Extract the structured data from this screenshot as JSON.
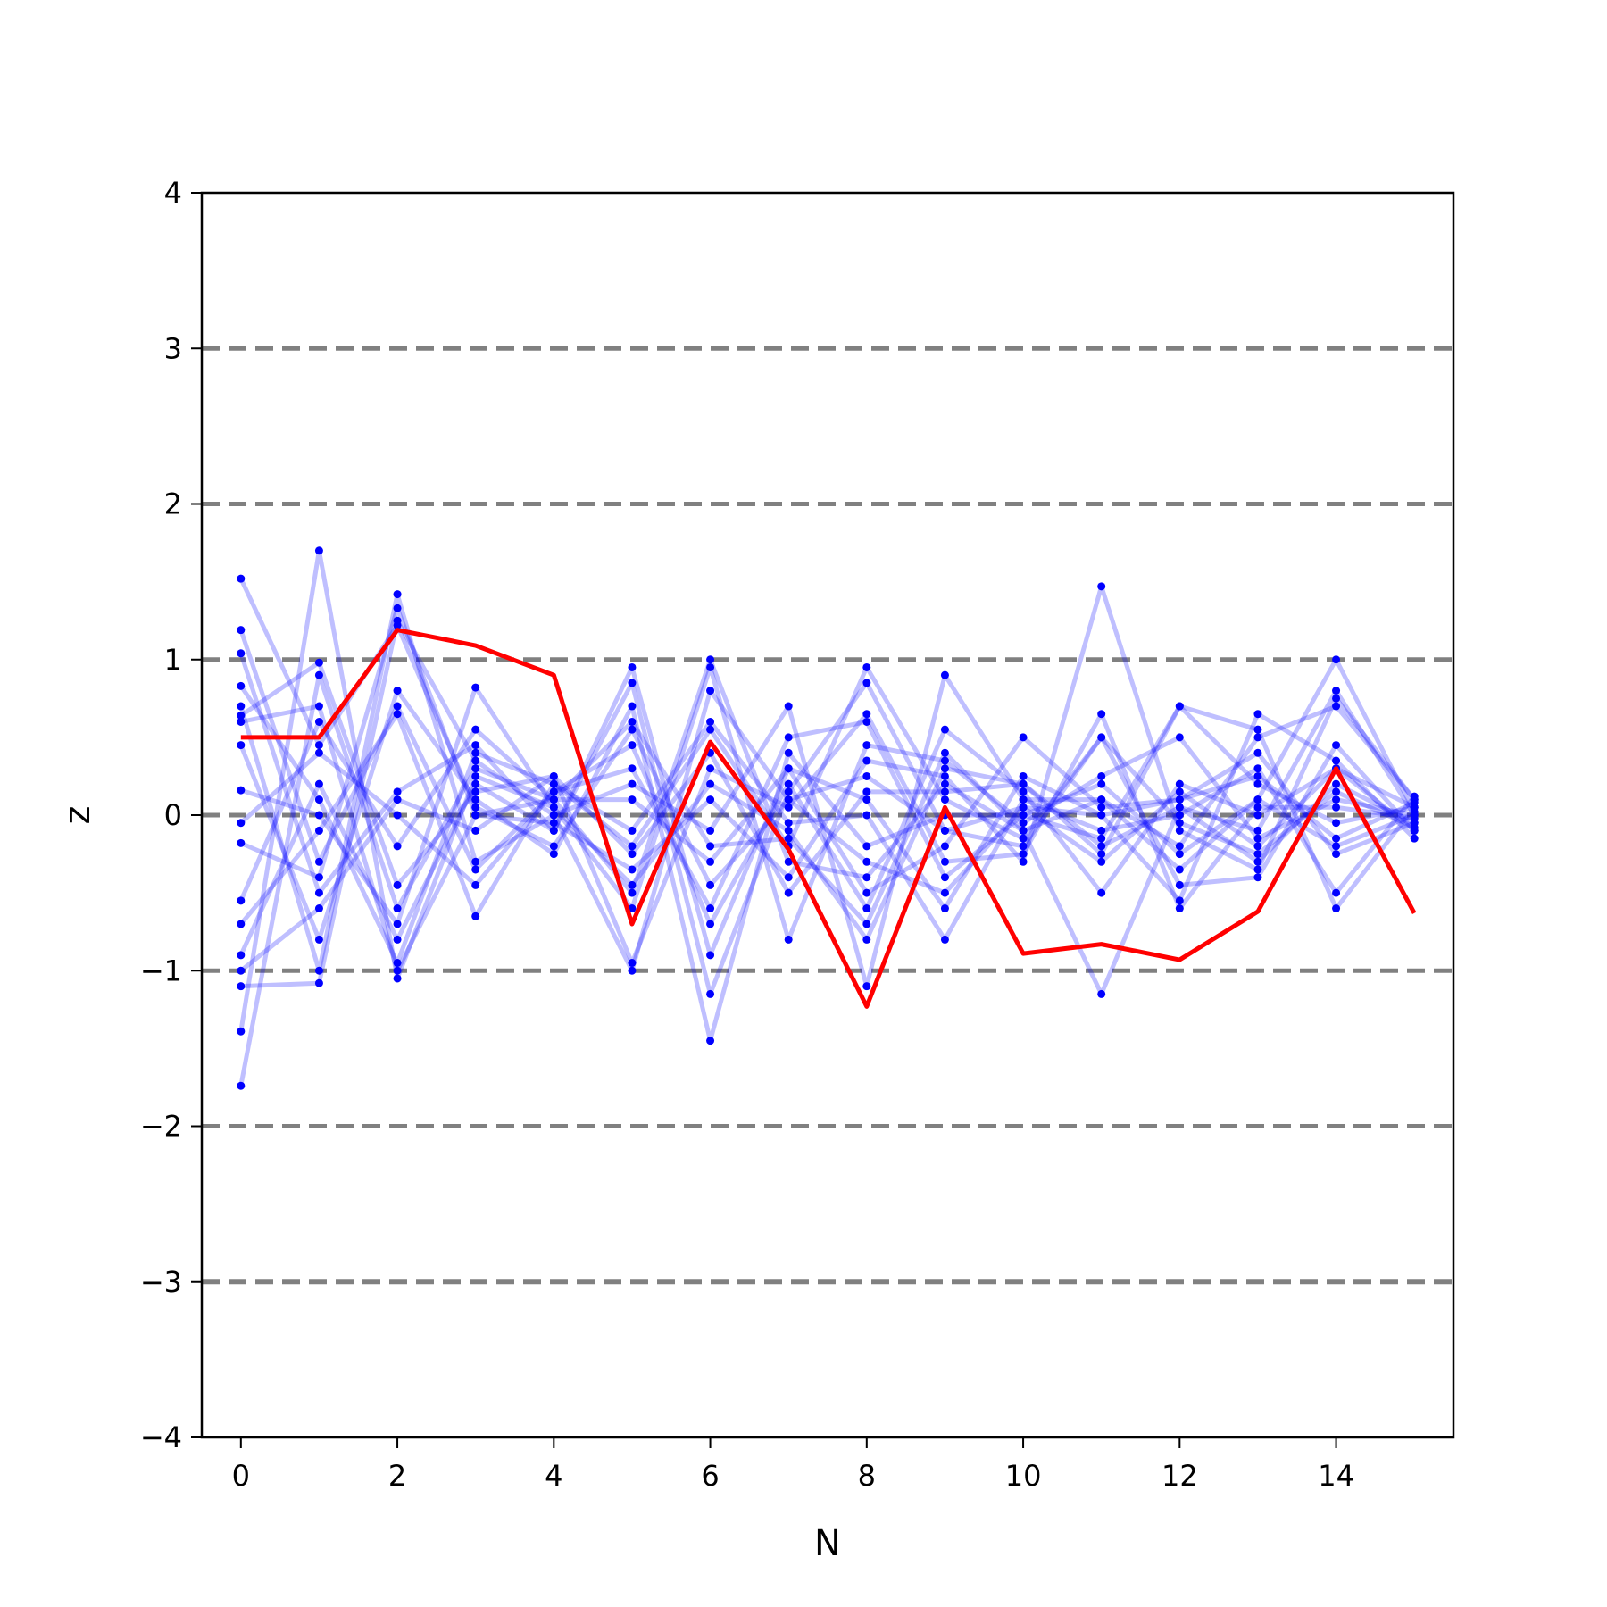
{
  "chart_data": {
    "type": "line",
    "title": "",
    "xlabel": "N",
    "ylabel": "z",
    "xlim": [
      -0.5,
      15.5
    ],
    "ylim": [
      -4,
      4
    ],
    "x_ticks": [
      0,
      2,
      4,
      6,
      8,
      10,
      12,
      14
    ],
    "y_ticks": [
      -4,
      -3,
      -2,
      -1,
      0,
      1,
      2,
      3,
      4
    ],
    "y_tick_labels": [
      "−4",
      "−3",
      "−2",
      "−1",
      "0",
      "1",
      "2",
      "3",
      "4"
    ],
    "x_tick_labels": [
      "0",
      "2",
      "4",
      "6",
      "8",
      "10",
      "12",
      "14"
    ],
    "reference_lines": [
      -3,
      -2,
      -1,
      0,
      1,
      2,
      3
    ],
    "grid": false,
    "legend": "none",
    "colors": {
      "reference_line": "#808080",
      "sample_line": "#0000ff",
      "sample_point": "#0000ff",
      "highlight_line": "#ff0000",
      "axes": "#000000"
    },
    "x": [
      0,
      1,
      2,
      3,
      4,
      5,
      6,
      7,
      8,
      9,
      10,
      11,
      12,
      13,
      14,
      15
    ],
    "highlight_series": {
      "values": [
        0.5,
        0.5,
        1.19,
        1.09,
        0.9,
        -0.7,
        0.47,
        -0.22,
        -1.23,
        0.05,
        -0.89,
        -0.83,
        -0.93,
        -0.62,
        0.3,
        -0.63
      ]
    },
    "series": [
      {
        "values": [
          1.52,
          0.45,
          1.22,
          0.05,
          -0.2,
          0.55,
          -0.45,
          0.1,
          0.25,
          -0.1,
          0.05,
          -0.3,
          0.15,
          -0.2,
          0.3,
          0.05
        ]
      },
      {
        "values": [
          -1.74,
          0.9,
          -0.6,
          0.3,
          0.1,
          -0.5,
          1.0,
          -0.3,
          -0.4,
          0.2,
          -0.1,
          0.1,
          -0.2,
          0.5,
          0.7,
          0.1
        ]
      },
      {
        "values": [
          1.19,
          -0.3,
          0.7,
          -0.35,
          0.15,
          0.3,
          -0.6,
          0.5,
          0.6,
          -0.4,
          0.0,
          0.2,
          -0.25,
          0.1,
          -0.2,
          0.0
        ]
      },
      {
        "values": [
          -1.39,
          1.7,
          -1.05,
          0.25,
          0.05,
          -0.45,
          0.2,
          -0.1,
          -0.8,
          0.3,
          0.2,
          -0.2,
          0.05,
          -0.3,
          0.2,
          -0.05
        ]
      },
      {
        "values": [
          1.04,
          -0.5,
          0.15,
          0.45,
          -0.1,
          0.95,
          -0.9,
          0.3,
          0.1,
          -0.6,
          0.25,
          0.0,
          0.1,
          0.25,
          -0.15,
          0.08
        ]
      },
      {
        "values": [
          0.83,
          0.1,
          -0.95,
          0.4,
          0.2,
          -0.2,
          0.55,
          -0.2,
          0.95,
          0.1,
          -0.15,
          0.5,
          -0.45,
          -0.4,
          0.45,
          -0.1
        ]
      },
      {
        "values": [
          0.7,
          -1.0,
          1.42,
          -0.3,
          0.0,
          0.2,
          -0.1,
          0.7,
          -1.1,
          0.9,
          0.1,
          -0.1,
          0.0,
          0.3,
          -0.5,
          0.12
        ]
      },
      {
        "values": [
          0.64,
          0.98,
          -0.45,
          0.15,
          0.25,
          -0.95,
          0.3,
          0.05,
          0.65,
          -0.3,
          -0.25,
          0.65,
          -0.6,
          0.05,
          0.05,
          -0.02
        ]
      },
      {
        "values": [
          0.45,
          -0.8,
          0.8,
          0.1,
          -0.25,
          0.7,
          -1.45,
          0.4,
          -0.2,
          0.0,
          0.0,
          -0.15,
          0.7,
          0.55,
          -0.6,
          0.05
        ]
      },
      {
        "values": [
          0.16,
          0.0,
          -0.7,
          0.82,
          0.05,
          -0.6,
          0.95,
          -0.8,
          0.45,
          0.35,
          -0.05,
          0.25,
          0.5,
          -0.15,
          0.1,
          0.0
        ]
      },
      {
        "values": [
          -0.05,
          0.4,
          0.0,
          -0.45,
          0.15,
          0.45,
          -0.7,
          0.2,
          -0.6,
          0.55,
          0.15,
          -0.5,
          0.2,
          0.0,
          0.3,
          -0.1
        ]
      },
      {
        "values": [
          -0.18,
          -0.4,
          1.33,
          0.0,
          -0.05,
          -0.35,
          0.1,
          -0.4,
          0.35,
          0.25,
          -0.3,
          1.47,
          -0.1,
          -0.35,
          0.75,
          0.1
        ]
      },
      {
        "values": [
          -0.55,
          0.6,
          -0.2,
          0.55,
          0.1,
          0.1,
          -0.3,
          0.3,
          -0.5,
          -0.2,
          0.5,
          0.05,
          0.1,
          0.4,
          -0.25,
          -0.05
        ]
      },
      {
        "values": [
          -0.7,
          -0.1,
          0.65,
          -0.65,
          0.2,
          -0.1,
          0.6,
          -0.05,
          0.0,
          -0.8,
          0.1,
          0.1,
          -0.35,
          0.1,
          1.0,
          0.02
        ]
      },
      {
        "values": [
          -0.9,
          0.2,
          -0.8,
          0.2,
          -0.1,
          0.85,
          -1.15,
          0.15,
          0.85,
          -0.1,
          -0.2,
          0.5,
          -0.05,
          -0.25,
          0.15,
          -0.08
        ]
      },
      {
        "values": [
          -1.0,
          -0.6,
          0.1,
          -0.1,
          0.25,
          -0.25,
          0.4,
          -0.5,
          0.15,
          0.15,
          0.2,
          -0.25,
          0.7,
          0.2,
          -0.05,
          0.05
        ]
      },
      {
        "values": [
          -1.1,
          -1.08,
          1.25,
          0.35,
          0.0,
          -1.0,
          0.8,
          0.1,
          -0.3,
          -0.5,
          0.05,
          0.0,
          -0.55,
          0.65,
          0.35,
          -0.15
        ]
      },
      {
        "values": [
          0.6,
          0.7,
          -1.0,
          0.0,
          0.1,
          0.6,
          -0.2,
          -0.15,
          -0.7,
          0.4,
          -0.1,
          -1.15,
          0.05,
          -0.1,
          0.8,
          0.0
        ]
      }
    ]
  }
}
